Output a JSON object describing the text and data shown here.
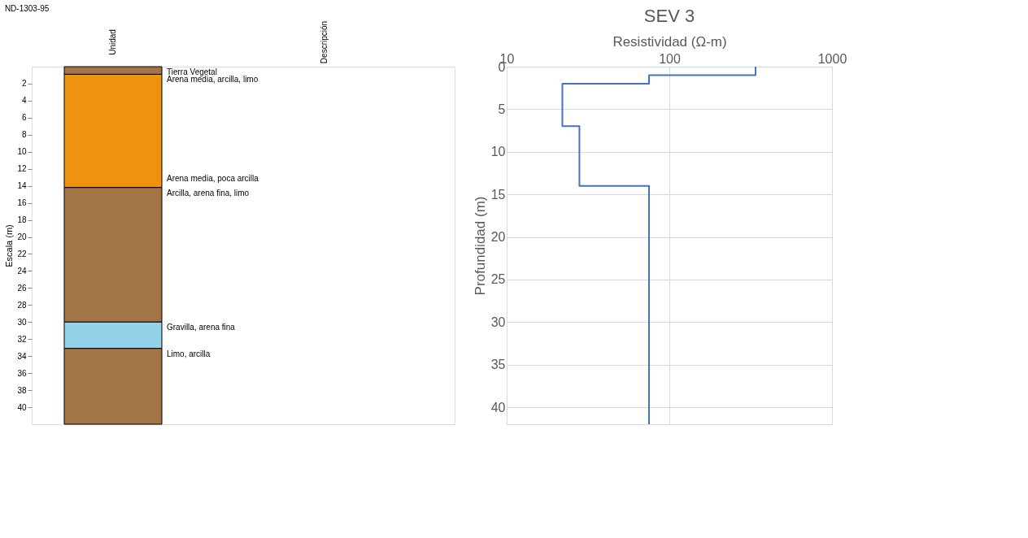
{
  "chart_data": [
    {
      "type": "bar",
      "stacked": true,
      "title": "ND-1303-95",
      "ylabel": "Escala (m)",
      "categories": [
        null
      ],
      "series": [
        {
          "name": "Tierra Vegetal",
          "color": "#a37446",
          "values": [
            0.9
          ]
        },
        {
          "name": "Arena media, arcilla, limo",
          "color": "#ef9210",
          "values": [
            13.3
          ]
        },
        {
          "name": "Arcilla, arena fina, limo",
          "color": "#a37446",
          "values": [
            15.8
          ]
        },
        {
          "name": "Gravilla, arena fina",
          "color": "#92d3ea",
          "values": [
            3.1
          ]
        },
        {
          "name": "Limo, arcilla",
          "color": "#a37446",
          "values": [
            8.9
          ]
        }
      ],
      "ylim": [
        42,
        0
      ],
      "yticks": [
        2,
        4,
        6,
        8,
        10,
        12,
        14,
        16,
        18,
        20,
        22,
        24,
        26,
        28,
        30,
        32,
        34,
        36,
        38,
        40
      ],
      "grid": false,
      "annotations": [
        "Unidad",
        "Descripción",
        "Arena media, poca arcilla"
      ]
    },
    {
      "type": "line",
      "title": "SEV 3",
      "xlabel": "Resistividad (Ω-m)",
      "ylabel": "Profundidad (m)",
      "log": "x",
      "xlim": [
        10,
        1000
      ],
      "xticks": [
        10,
        100,
        1000
      ],
      "ylim": [
        42,
        0
      ],
      "yticks": [
        0,
        5,
        10,
        15,
        20,
        25,
        30,
        35,
        40
      ],
      "grid": true,
      "marker": "none",
      "series": [
        {
          "color": "#4472c4",
          "x": [
            339,
            339,
            75,
            75,
            22,
            22,
            28,
            28,
            75,
            75
          ],
          "values": [
            0,
            1,
            1,
            2,
            2,
            7,
            7,
            14,
            14,
            42
          ]
        }
      ]
    }
  ]
}
